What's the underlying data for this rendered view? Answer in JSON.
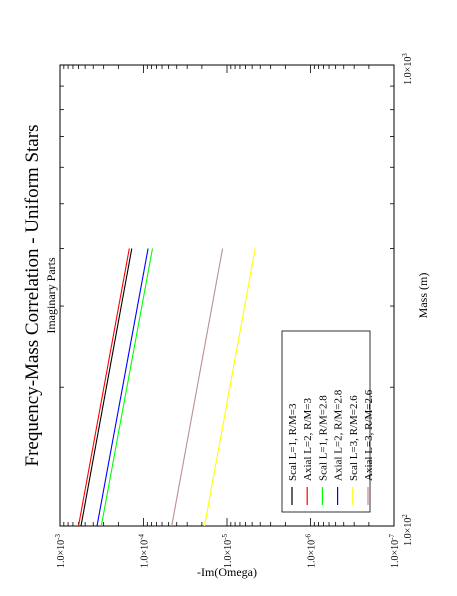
{
  "chart_data": {
    "type": "line",
    "title": "Frequency-Mass Correlation - Uniform Stars",
    "subtitle": "Imaginary Parts",
    "xlabel": "Mass (m)",
    "ylabel": "-Im(Omega)",
    "x_scale": "log",
    "y_scale": "log",
    "xlim": [
      100,
      1000
    ],
    "ylim": [
      1e-07,
      0.001
    ],
    "x_ticks": [
      {
        "value": 100,
        "mantissa": "1.0×10",
        "exp": "2"
      },
      {
        "value": 1000,
        "mantissa": "1.0×10",
        "exp": "3"
      }
    ],
    "y_ticks": [
      {
        "value": 0.001,
        "mantissa": "1.0×10",
        "exp": "-3"
      },
      {
        "value": 0.0001,
        "mantissa": "1.0×10",
        "exp": "-4"
      },
      {
        "value": 1e-05,
        "mantissa": "1.0×10",
        "exp": "-5"
      },
      {
        "value": 1e-06,
        "mantissa": "1.0×10",
        "exp": "-6"
      },
      {
        "value": 1e-07,
        "mantissa": "1.0×10",
        "exp": "-7"
      }
    ],
    "grid": false,
    "legend_position": "bottom-right",
    "orientation": "rotated-90-ccw",
    "series": [
      {
        "name": "Scal L=1, R/M=3",
        "color": "#000000",
        "x": [
          100,
          400
        ],
        "y": [
          0.00056,
          0.000138
        ]
      },
      {
        "name": "Axial L=2, R/M=3",
        "color": "#ff0000",
        "x": [
          100,
          400
        ],
        "y": [
          0.0006,
          0.000148
        ]
      },
      {
        "name": "Scal L=1, R/M=2.8",
        "color": "#00ff00",
        "x": [
          100,
          400
        ],
        "y": [
          0.00032,
          7.8e-05
        ]
      },
      {
        "name": "Axial L=2, R/M=2.8",
        "color": "#0000ff",
        "x": [
          100,
          400
        ],
        "y": [
          0.00036,
          8.8e-05
        ]
      },
      {
        "name": "Scal L=3, R/M=2.6",
        "color": "#ffff00",
        "x": [
          100,
          400
        ],
        "y": [
          1.86e-05,
          4.6e-06
        ]
      },
      {
        "name": "Axial L=3, R/M=2.6",
        "color": "#bc8f8f",
        "x": [
          100,
          400
        ],
        "y": [
          4.6e-05,
          1.13e-05
        ]
      }
    ]
  }
}
